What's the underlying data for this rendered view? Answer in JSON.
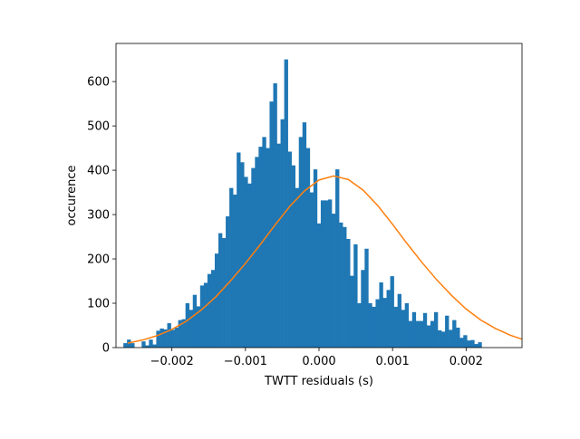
{
  "chart_data": {
    "type": "bar",
    "title": "",
    "xlabel": "TWTT residuals (s)",
    "ylabel": "occurence",
    "xlim": [
      -0.00276,
      0.00276
    ],
    "ylim": [
      0,
      686
    ],
    "grid": false,
    "legend": "none",
    "x_ticks": [
      -0.002,
      -0.001,
      0.0,
      0.001,
      0.002
    ],
    "x_tick_labels": [
      "−0.002",
      "−0.001",
      "0.000",
      "0.001",
      "0.002"
    ],
    "y_ticks": [
      0,
      100,
      200,
      300,
      400,
      500,
      600
    ],
    "y_tick_labels": [
      "0",
      "100",
      "200",
      "300",
      "400",
      "500",
      "600"
    ],
    "histogram": {
      "color": "#1f77b4",
      "bin_start": -0.00266,
      "bin_width": 4.97e-05,
      "counts": [
        10,
        18,
        10,
        0,
        0,
        14,
        5,
        18,
        7,
        38,
        43,
        41,
        55,
        40,
        45,
        62,
        64,
        100,
        85,
        119,
        93,
        140,
        146,
        166,
        175,
        212,
        258,
        247,
        296,
        360,
        345,
        440,
        418,
        385,
        370,
        405,
        430,
        453,
        475,
        450,
        555,
        596,
        460,
        515,
        650,
        442,
        411,
        360,
        475,
        508,
        450,
        350,
        402,
        280,
        332,
        332,
        334,
        302,
        402,
        282,
        272,
        245,
        162,
        233,
        100,
        175,
        223,
        100,
        92,
        109,
        147,
        112,
        130,
        161,
        92,
        121,
        85,
        100,
        60,
        80,
        60,
        60,
        78,
        50,
        60,
        80,
        39,
        36,
        72,
        40,
        62,
        45,
        22,
        28,
        16,
        17,
        8,
        12
      ]
    },
    "series": [
      {
        "type": "line",
        "color": "#ff7f0e",
        "x": [
          -0.0026,
          -0.0024,
          -0.0022,
          -0.002,
          -0.0018,
          -0.0016,
          -0.0014,
          -0.0012,
          -0.001,
          -0.0008,
          -0.0006,
          -0.0004,
          -0.0002,
          0.0,
          0.0002,
          0.0004,
          0.0006,
          0.0008,
          0.001,
          0.0012,
          0.0014,
          0.0016,
          0.0018,
          0.002,
          0.0022,
          0.0024,
          0.0026,
          0.00276
        ],
        "y": [
          10,
          17,
          27,
          41,
          60,
          85,
          115,
          151,
          190,
          232,
          276,
          318,
          353,
          378,
          387,
          379,
          355,
          320,
          278,
          234,
          192,
          153,
          118,
          87,
          62,
          43,
          28,
          19
        ]
      }
    ]
  }
}
